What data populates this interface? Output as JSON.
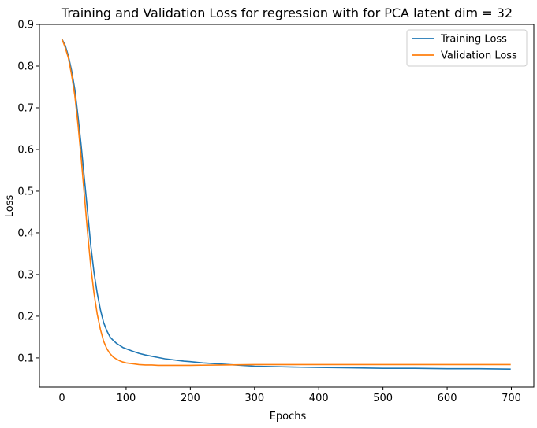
{
  "chart_data": {
    "type": "line",
    "title": "Training and Validation Loss for regression with for PCA latent dim = 32",
    "xlabel": "Epochs",
    "ylabel": "Loss",
    "xlim": [
      -35,
      735
    ],
    "ylim": [
      0.03,
      0.9
    ],
    "xticks": [
      0,
      100,
      200,
      300,
      400,
      500,
      600,
      700
    ],
    "xtick_labels": [
      "0",
      "100",
      "200",
      "300",
      "400",
      "500",
      "600",
      "700"
    ],
    "yticks": [
      0.1,
      0.2,
      0.3,
      0.4,
      0.5,
      0.6,
      0.7,
      0.8,
      0.9
    ],
    "ytick_labels": [
      "0.1",
      "0.2",
      "0.3",
      "0.4",
      "0.5",
      "0.6",
      "0.7",
      "0.8",
      "0.9"
    ],
    "grid": false,
    "legend_position": "top-right",
    "series": [
      {
        "name": "Training Loss",
        "color": "#1f77b4",
        "x": [
          0,
          5,
          10,
          15,
          20,
          25,
          30,
          35,
          40,
          45,
          50,
          55,
          60,
          65,
          70,
          75,
          80,
          85,
          90,
          95,
          100,
          110,
          120,
          130,
          140,
          150,
          160,
          170,
          180,
          190,
          200,
          220,
          240,
          260,
          280,
          300,
          330,
          360,
          400,
          450,
          500,
          550,
          600,
          650,
          699
        ],
        "y": [
          0.865,
          0.85,
          0.825,
          0.79,
          0.745,
          0.68,
          0.61,
          0.53,
          0.45,
          0.37,
          0.305,
          0.255,
          0.215,
          0.185,
          0.165,
          0.15,
          0.142,
          0.135,
          0.13,
          0.125,
          0.122,
          0.116,
          0.111,
          0.107,
          0.104,
          0.101,
          0.098,
          0.096,
          0.094,
          0.092,
          0.091,
          0.088,
          0.086,
          0.084,
          0.082,
          0.08,
          0.079,
          0.078,
          0.077,
          0.076,
          0.075,
          0.075,
          0.074,
          0.074,
          0.073
        ]
      },
      {
        "name": "Validation Loss",
        "color": "#ff7f0e",
        "x": [
          0,
          5,
          10,
          15,
          20,
          25,
          30,
          35,
          40,
          45,
          50,
          55,
          60,
          65,
          70,
          75,
          80,
          85,
          90,
          95,
          100,
          110,
          120,
          130,
          140,
          150,
          160,
          180,
          200,
          250,
          300,
          350,
          400,
          500,
          600,
          699
        ],
        "y": [
          0.865,
          0.845,
          0.82,
          0.78,
          0.73,
          0.66,
          0.58,
          0.49,
          0.4,
          0.32,
          0.255,
          0.205,
          0.168,
          0.14,
          0.122,
          0.11,
          0.102,
          0.097,
          0.093,
          0.09,
          0.088,
          0.086,
          0.084,
          0.083,
          0.083,
          0.082,
          0.082,
          0.082,
          0.082,
          0.083,
          0.084,
          0.084,
          0.084,
          0.084,
          0.084,
          0.084
        ]
      }
    ]
  }
}
